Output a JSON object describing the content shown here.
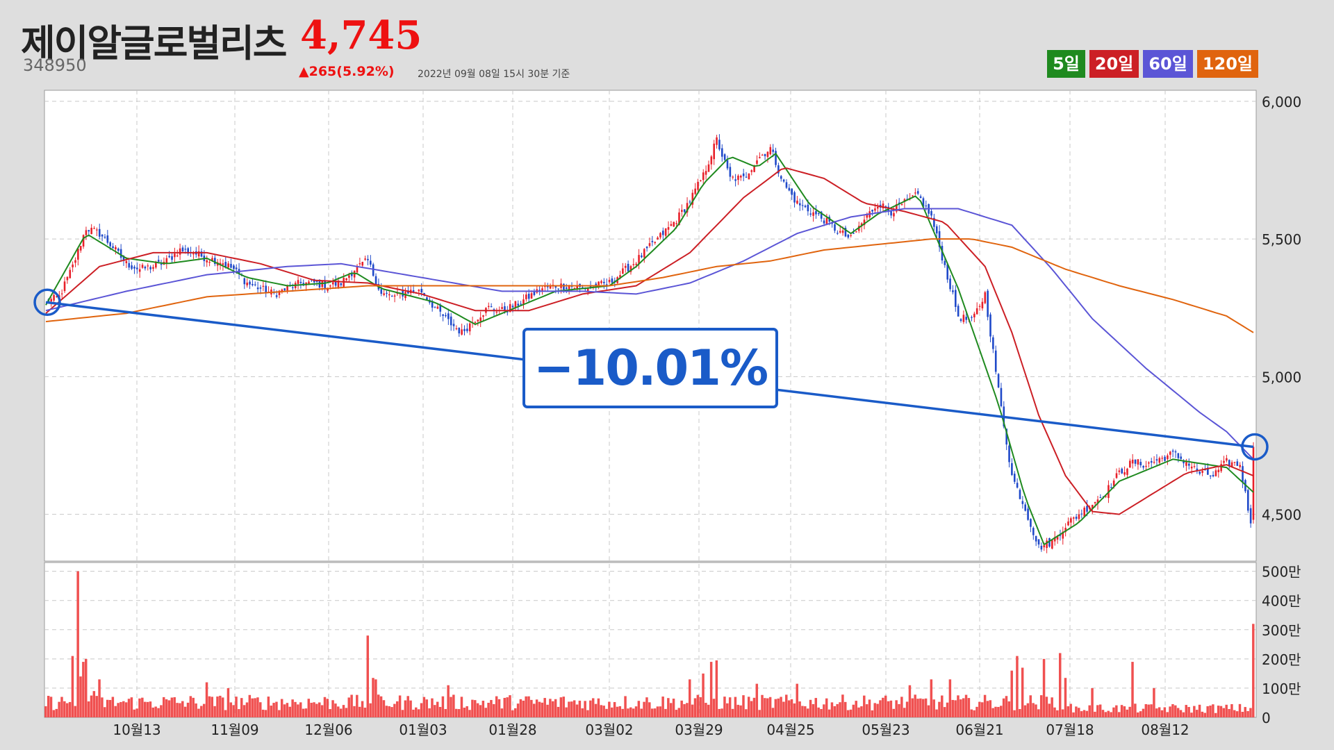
{
  "header": {
    "name": "제이알글로벌리츠",
    "price": "4,745",
    "code": "348950",
    "change": "▲265(5.92%)",
    "as_of": "2022년 09월 08일 15시 30분 기준"
  },
  "ma_legend": [
    {
      "label": "5일",
      "color": "#1f8a1f"
    },
    {
      "label": "20일",
      "color": "#cc1f25"
    },
    {
      "label": "60일",
      "color": "#5b55d6"
    },
    {
      "label": "120일",
      "color": "#e0640e"
    }
  ],
  "callout": {
    "text": "−10.01%",
    "color": "#1a5bc8"
  },
  "colors": {
    "up": "#e8202a",
    "down": "#1f49c9",
    "volume": "#f05050"
  },
  "chart_data": [
    {
      "type": "candlestick",
      "title": "",
      "x_tick_labels": [
        "10월13",
        "11월09",
        "12월06",
        "01월03",
        "01월28",
        "03월02",
        "03월29",
        "04월25",
        "05월23",
        "06월21",
        "07월18",
        "08월12"
      ],
      "y_ticks": [
        4500,
        5000,
        5500,
        6000
      ],
      "y_tick_labels": [
        "4,500",
        "5,000",
        "5,500",
        "6,000"
      ],
      "ylim": [
        4330,
        6040
      ],
      "grid": true,
      "close_anchors": [
        [
          0,
          5270
        ],
        [
          5,
          5290
        ],
        [
          10,
          5400
        ],
        [
          15,
          5540
        ],
        [
          20,
          5520
        ],
        [
          25,
          5470
        ],
        [
          30,
          5410
        ],
        [
          35,
          5390
        ],
        [
          40,
          5400
        ],
        [
          45,
          5420
        ],
        [
          50,
          5460
        ],
        [
          55,
          5450
        ],
        [
          60,
          5430
        ],
        [
          65,
          5420
        ],
        [
          70,
          5390
        ],
        [
          75,
          5340
        ],
        [
          80,
          5320
        ],
        [
          85,
          5300
        ],
        [
          90,
          5320
        ],
        [
          95,
          5340
        ],
        [
          100,
          5340
        ],
        [
          105,
          5330
        ],
        [
          110,
          5340
        ],
        [
          115,
          5390
        ],
        [
          120,
          5420
        ],
        [
          125,
          5300
        ],
        [
          130,
          5290
        ],
        [
          135,
          5310
        ],
        [
          140,
          5310
        ],
        [
          145,
          5250
        ],
        [
          150,
          5200
        ],
        [
          155,
          5160
        ],
        [
          160,
          5210
        ],
        [
          165,
          5250
        ],
        [
          170,
          5240
        ],
        [
          175,
          5260
        ],
        [
          180,
          5290
        ],
        [
          185,
          5320
        ],
        [
          190,
          5330
        ],
        [
          195,
          5330
        ],
        [
          200,
          5320
        ],
        [
          205,
          5330
        ],
        [
          210,
          5340
        ],
        [
          215,
          5380
        ],
        [
          220,
          5420
        ],
        [
          225,
          5470
        ],
        [
          230,
          5520
        ],
        [
          235,
          5570
        ],
        [
          240,
          5640
        ],
        [
          245,
          5730
        ],
        [
          250,
          5860
        ],
        [
          255,
          5720
        ],
        [
          260,
          5720
        ],
        [
          265,
          5790
        ],
        [
          270,
          5830
        ],
        [
          275,
          5700
        ],
        [
          280,
          5630
        ],
        [
          285,
          5600
        ],
        [
          290,
          5570
        ],
        [
          295,
          5530
        ],
        [
          300,
          5500
        ],
        [
          305,
          5570
        ],
        [
          310,
          5630
        ],
        [
          315,
          5600
        ],
        [
          320,
          5630
        ],
        [
          325,
          5660
        ],
        [
          330,
          5580
        ],
        [
          335,
          5400
        ],
        [
          340,
          5220
        ],
        [
          345,
          5200
        ],
        [
          350,
          5300
        ],
        [
          355,
          4950
        ],
        [
          360,
          4640
        ],
        [
          365,
          4520
        ],
        [
          370,
          4380
        ],
        [
          375,
          4400
        ],
        [
          380,
          4460
        ],
        [
          385,
          4500
        ],
        [
          390,
          4540
        ],
        [
          395,
          4580
        ],
        [
          400,
          4650
        ],
        [
          405,
          4690
        ],
        [
          410,
          4680
        ],
        [
          415,
          4700
        ],
        [
          420,
          4720
        ],
        [
          425,
          4690
        ],
        [
          430,
          4650
        ],
        [
          435,
          4640
        ],
        [
          440,
          4690
        ],
        [
          445,
          4680
        ],
        [
          448,
          4520
        ],
        [
          449,
          4480
        ],
        [
          450,
          4745
        ]
      ],
      "moving_averages": [
        {
          "name": "5일",
          "color": "#1f8a1f",
          "points": [
            [
              0,
              5260
            ],
            [
              15,
              5520
            ],
            [
              30,
              5430
            ],
            [
              45,
              5410
            ],
            [
              60,
              5430
            ],
            [
              75,
              5360
            ],
            [
              90,
              5330
            ],
            [
              105,
              5340
            ],
            [
              115,
              5380
            ],
            [
              125,
              5320
            ],
            [
              145,
              5270
            ],
            [
              160,
              5190
            ],
            [
              175,
              5250
            ],
            [
              190,
              5310
            ],
            [
              210,
              5330
            ],
            [
              220,
              5400
            ],
            [
              235,
              5540
            ],
            [
              245,
              5700
            ],
            [
              255,
              5800
            ],
            [
              265,
              5760
            ],
            [
              272,
              5810
            ],
            [
              285,
              5620
            ],
            [
              300,
              5520
            ],
            [
              310,
              5590
            ],
            [
              325,
              5660
            ],
            [
              340,
              5320
            ],
            [
              355,
              4900
            ],
            [
              365,
              4560
            ],
            [
              372,
              4390
            ],
            [
              385,
              4470
            ],
            [
              400,
              4620
            ],
            [
              420,
              4700
            ],
            [
              440,
              4670
            ],
            [
              450,
              4580
            ]
          ]
        },
        {
          "name": "20일",
          "color": "#cc1f25",
          "points": [
            [
              0,
              5230
            ],
            [
              20,
              5400
            ],
            [
              40,
              5450
            ],
            [
              60,
              5450
            ],
            [
              80,
              5410
            ],
            [
              100,
              5350
            ],
            [
              120,
              5340
            ],
            [
              140,
              5300
            ],
            [
              160,
              5240
            ],
            [
              180,
              5240
            ],
            [
              200,
              5300
            ],
            [
              220,
              5330
            ],
            [
              240,
              5450
            ],
            [
              260,
              5650
            ],
            [
              275,
              5760
            ],
            [
              290,
              5720
            ],
            [
              305,
              5630
            ],
            [
              320,
              5600
            ],
            [
              335,
              5560
            ],
            [
              350,
              5400
            ],
            [
              360,
              5160
            ],
            [
              370,
              4860
            ],
            [
              380,
              4640
            ],
            [
              390,
              4510
            ],
            [
              400,
              4500
            ],
            [
              410,
              4560
            ],
            [
              425,
              4650
            ],
            [
              440,
              4680
            ],
            [
              450,
              4640
            ]
          ]
        },
        {
          "name": "60일",
          "color": "#5b55d6",
          "points": [
            [
              0,
              5240
            ],
            [
              30,
              5310
            ],
            [
              60,
              5370
            ],
            [
              90,
              5400
            ],
            [
              110,
              5410
            ],
            [
              140,
              5360
            ],
            [
              170,
              5310
            ],
            [
              200,
              5310
            ],
            [
              220,
              5300
            ],
            [
              240,
              5340
            ],
            [
              260,
              5420
            ],
            [
              280,
              5520
            ],
            [
              300,
              5580
            ],
            [
              320,
              5610
            ],
            [
              340,
              5610
            ],
            [
              360,
              5550
            ],
            [
              375,
              5390
            ],
            [
              390,
              5210
            ],
            [
              410,
              5030
            ],
            [
              430,
              4870
            ],
            [
              440,
              4800
            ],
            [
              450,
              4700
            ]
          ]
        },
        {
          "name": "120일",
          "color": "#e0640e",
          "points": [
            [
              0,
              5200
            ],
            [
              30,
              5230
            ],
            [
              60,
              5290
            ],
            [
              90,
              5310
            ],
            [
              120,
              5330
            ],
            [
              150,
              5330
            ],
            [
              180,
              5330
            ],
            [
              210,
              5330
            ],
            [
              230,
              5360
            ],
            [
              250,
              5400
            ],
            [
              270,
              5420
            ],
            [
              290,
              5460
            ],
            [
              310,
              5480
            ],
            [
              330,
              5500
            ],
            [
              345,
              5500
            ],
            [
              360,
              5470
            ],
            [
              380,
              5390
            ],
            [
              400,
              5330
            ],
            [
              420,
              5280
            ],
            [
              440,
              5220
            ],
            [
              450,
              5160
            ]
          ]
        }
      ],
      "trend_line": {
        "from": [
          0,
          5270
        ],
        "to": [
          450,
          4745
        ],
        "color": "#1a5bc8",
        "label": "−10.01%"
      }
    },
    {
      "type": "bar",
      "title": "",
      "y_ticks": [
        0,
        100,
        200,
        300,
        400,
        500
      ],
      "y_tick_labels": [
        "0",
        "100만",
        "200만",
        "300만",
        "400만",
        "500만"
      ],
      "ylim": [
        0,
        530
      ],
      "grid": true,
      "color": "#f05050",
      "base_level": 60,
      "spikes": [
        [
          10,
          210
        ],
        [
          12,
          500
        ],
        [
          13,
          140
        ],
        [
          14,
          190
        ],
        [
          15,
          200
        ],
        [
          18,
          90
        ],
        [
          20,
          130
        ],
        [
          60,
          120
        ],
        [
          68,
          100
        ],
        [
          120,
          280
        ],
        [
          122,
          135
        ],
        [
          123,
          130
        ],
        [
          150,
          110
        ],
        [
          240,
          130
        ],
        [
          245,
          150
        ],
        [
          248,
          190
        ],
        [
          250,
          195
        ],
        [
          265,
          115
        ],
        [
          280,
          115
        ],
        [
          322,
          110
        ],
        [
          330,
          130
        ],
        [
          337,
          130
        ],
        [
          360,
          160
        ],
        [
          362,
          210
        ],
        [
          364,
          170
        ],
        [
          372,
          200
        ],
        [
          378,
          220
        ],
        [
          380,
          135
        ],
        [
          390,
          100
        ],
        [
          405,
          190
        ],
        [
          413,
          100
        ],
        [
          450,
          320
        ]
      ]
    }
  ]
}
